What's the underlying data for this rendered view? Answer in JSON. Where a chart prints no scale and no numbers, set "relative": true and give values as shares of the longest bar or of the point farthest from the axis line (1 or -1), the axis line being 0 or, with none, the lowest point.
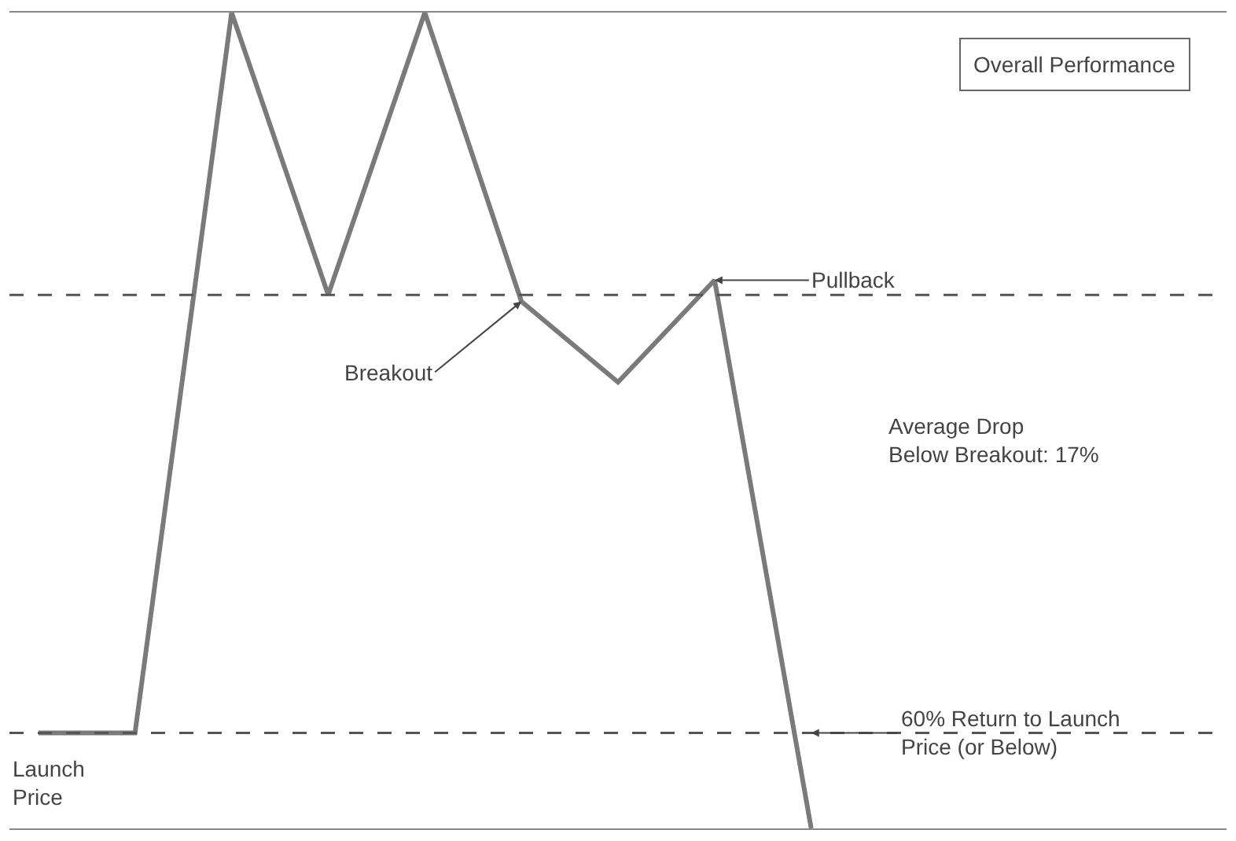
{
  "chart_data": {
    "type": "line",
    "relative": true,
    "title": "Overall Performance",
    "categories": [
      null,
      null,
      null,
      null,
      null,
      null,
      null,
      null,
      null
    ],
    "series": [
      {
        "color": "#7a7a7a",
        "values": [
          0.117,
          0.117,
          1,
          0.654,
          1,
          0.646,
          0.547,
          0.672,
          0
        ]
      }
    ],
    "ref_lines": [
      {
        "axis": "y",
        "value": 0.654,
        "line_style": "dashed",
        "color": "#555555"
      },
      {
        "axis": "y",
        "value": 0.117,
        "line_style": "dashed",
        "color": "#555555"
      }
    ],
    "annotations": [
      "Pullback",
      "Breakout",
      "Launch\nPrice",
      "Average Drop\nBelow Breakout: 17%",
      "60% Return to Launch\nPrice (or Below)"
    ],
    "line_style": "solid"
  }
}
